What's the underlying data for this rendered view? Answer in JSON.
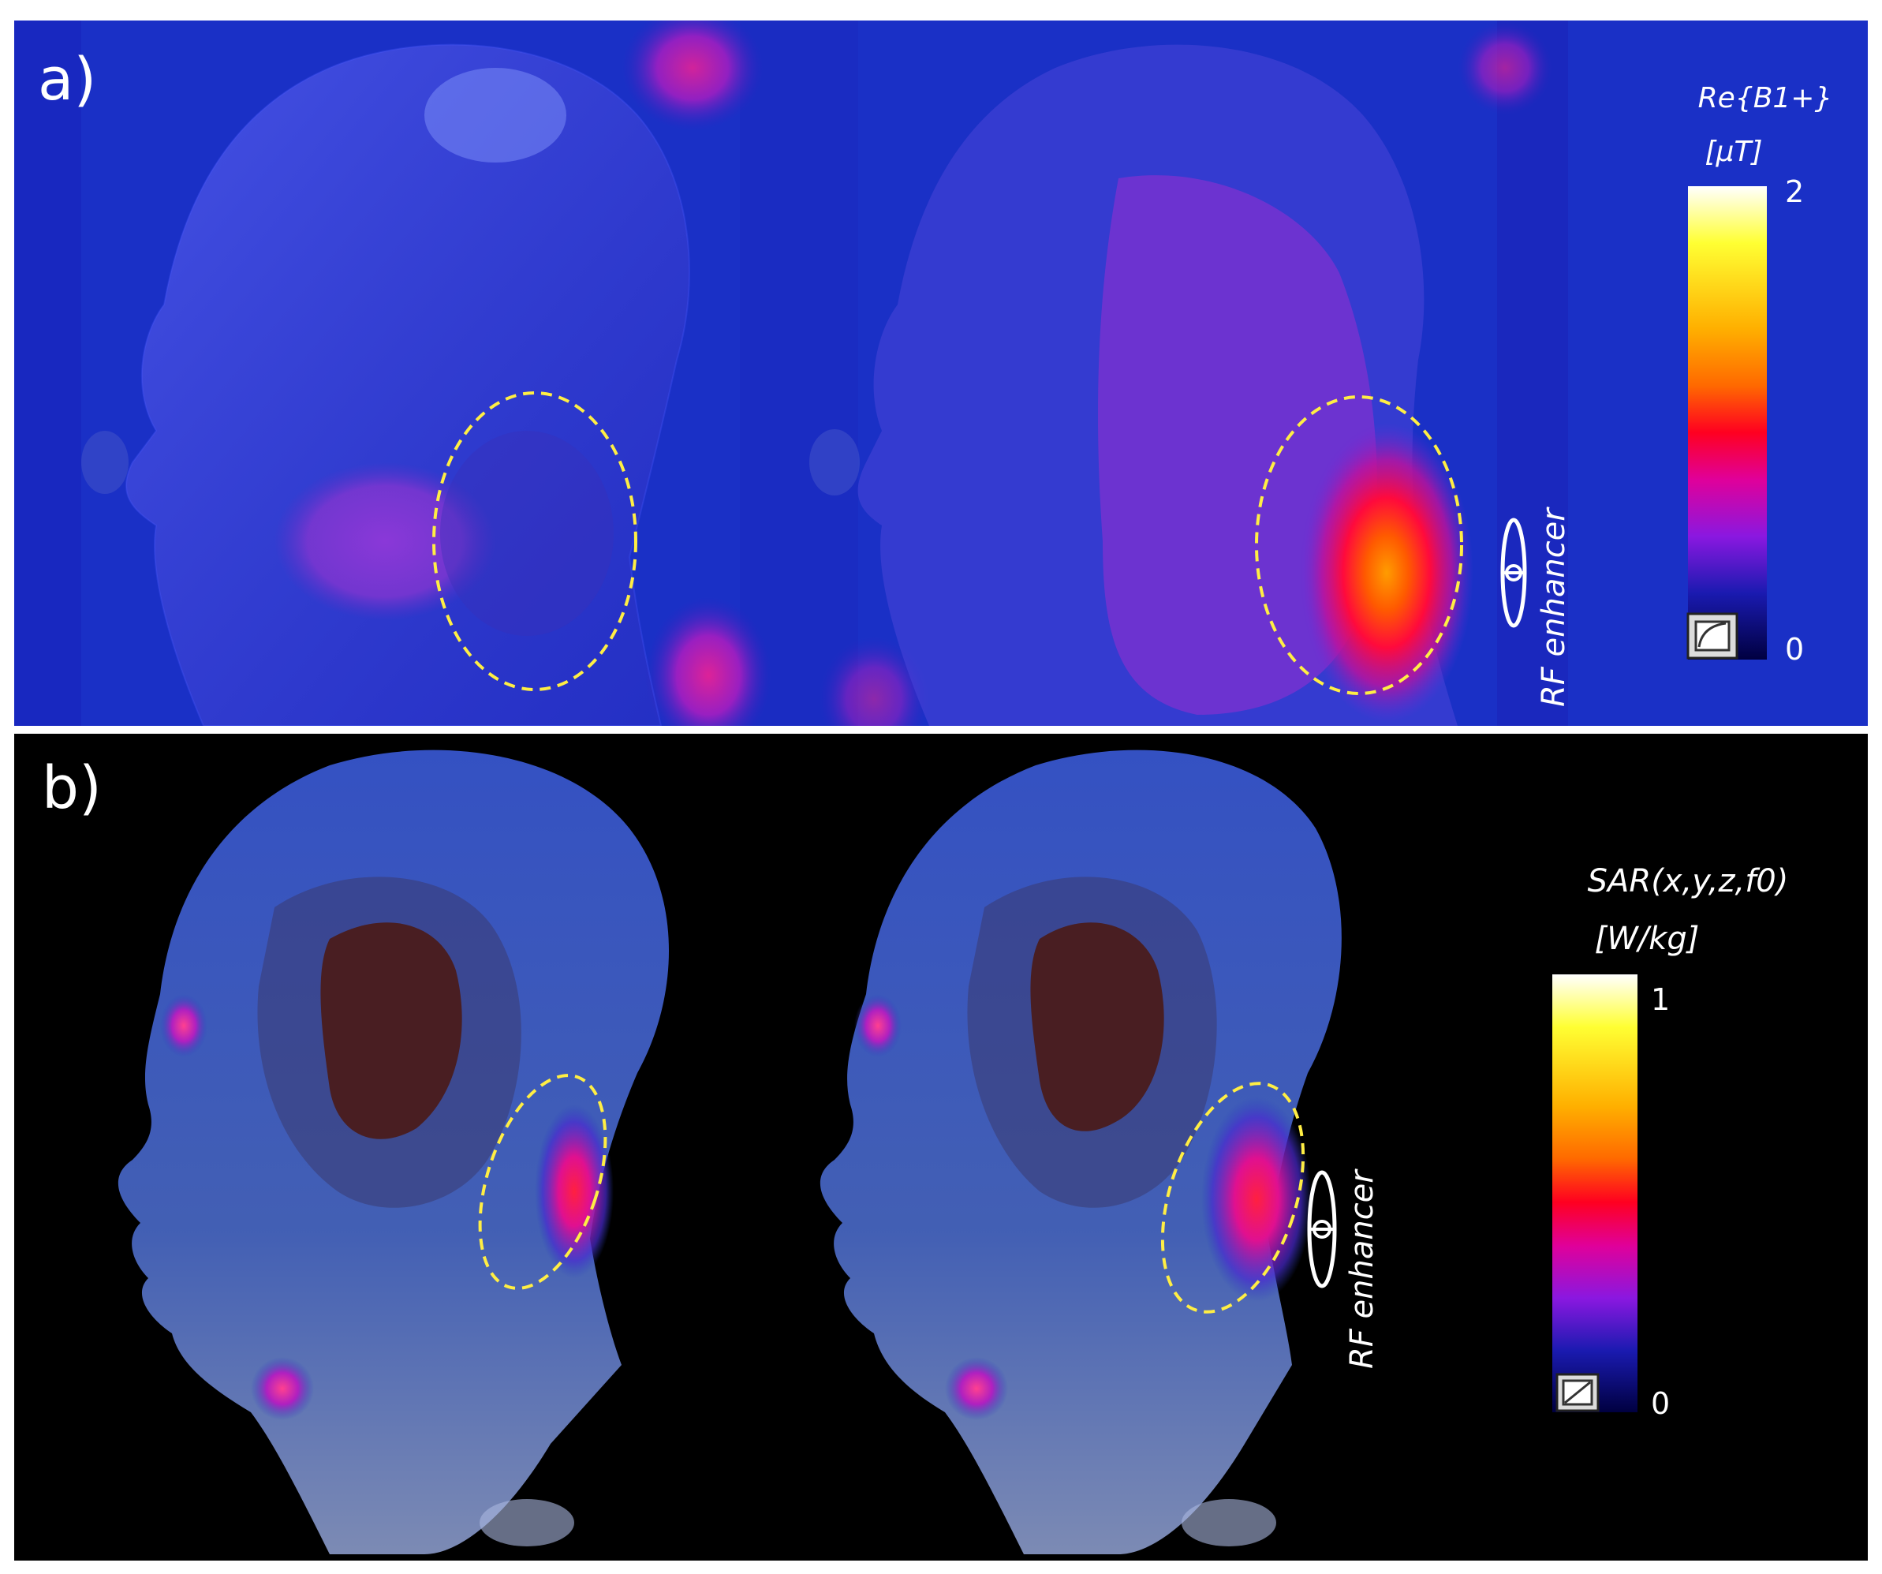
{
  "panels": [
    {
      "label": "a)",
      "colorbar": {
        "title_line1": "Re{B1+}",
        "title_line2": "[μT]",
        "max_label": "2",
        "min_label": "0",
        "colors": [
          "#ffffff",
          "#ffff33",
          "#ffb000",
          "#ff6a00",
          "#ff0020",
          "#e0009a",
          "#8a18e0",
          "#1a1ab0",
          "#000040"
        ]
      },
      "annotation": "RF enhancer"
    },
    {
      "label": "b)",
      "colorbar": {
        "title_line1": "SAR(x,y,z,f0)",
        "title_line2": "[W/kg]",
        "max_label": "1",
        "min_label": "0",
        "colors": [
          "#ffffff",
          "#ffff33",
          "#ffb000",
          "#ff6a00",
          "#ff0020",
          "#e0009a",
          "#8a18e0",
          "#1a1ab0",
          "#000040"
        ]
      },
      "annotation": "RF enhancer"
    }
  ],
  "colors": {
    "panel_a_background": "#1a32c8",
    "panel_b_background": "#000000",
    "ellipse_outline": "#ffee44"
  }
}
